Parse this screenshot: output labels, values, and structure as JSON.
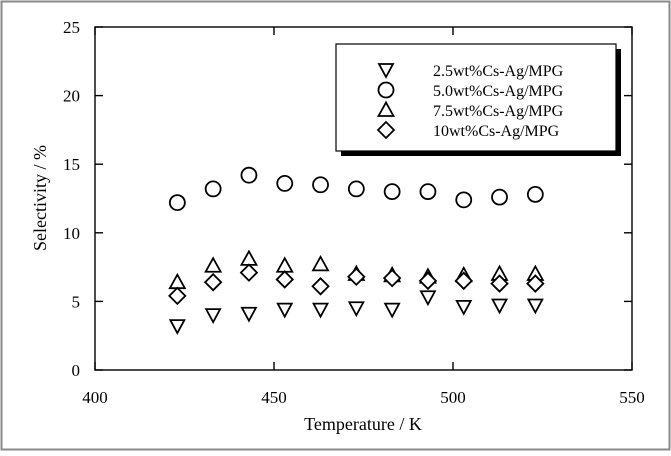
{
  "chart_data": {
    "type": "scatter",
    "xlabel": "Temperature / K",
    "ylabel": "Selectivity / %",
    "xlim": [
      400,
      550
    ],
    "ylim": [
      0,
      25
    ],
    "xticks": [
      400,
      450,
      500,
      550
    ],
    "yticks": [
      0,
      5,
      10,
      15,
      20,
      25
    ],
    "grid": false,
    "legend_position": "top-right",
    "series": [
      {
        "name": "2.5wt%Cs-Ag/MPG",
        "marker": "triangle-down",
        "x": [
          423,
          433,
          443,
          453,
          463,
          473,
          483,
          493,
          503,
          513,
          523
        ],
        "y": [
          3.2,
          4.0,
          4.1,
          4.4,
          4.4,
          4.5,
          4.4,
          5.3,
          4.6,
          4.7,
          4.7
        ]
      },
      {
        "name": "5.0wt%Cs-Ag/MPG",
        "marker": "circle",
        "x": [
          423,
          433,
          443,
          453,
          463,
          473,
          483,
          493,
          503,
          513,
          523
        ],
        "y": [
          12.2,
          13.2,
          14.2,
          13.6,
          13.5,
          13.2,
          13.0,
          13.0,
          12.4,
          12.6,
          12.8
        ]
      },
      {
        "name": "7.5wt%Cs-Ag/MPG",
        "marker": "triangle-up",
        "x": [
          423,
          433,
          443,
          453,
          463,
          473,
          483,
          493,
          503,
          513,
          523
        ],
        "y": [
          6.4,
          7.6,
          8.1,
          7.6,
          7.7,
          7.0,
          6.9,
          6.8,
          6.9,
          7.0,
          7.0
        ]
      },
      {
        "name": "10wt%Cs-Ag/MPG",
        "marker": "diamond",
        "x": [
          423,
          433,
          443,
          453,
          463,
          473,
          483,
          493,
          503,
          513,
          523
        ],
        "y": [
          5.4,
          6.4,
          7.1,
          6.6,
          6.1,
          6.8,
          6.7,
          6.5,
          6.5,
          6.3,
          6.3
        ]
      }
    ]
  }
}
